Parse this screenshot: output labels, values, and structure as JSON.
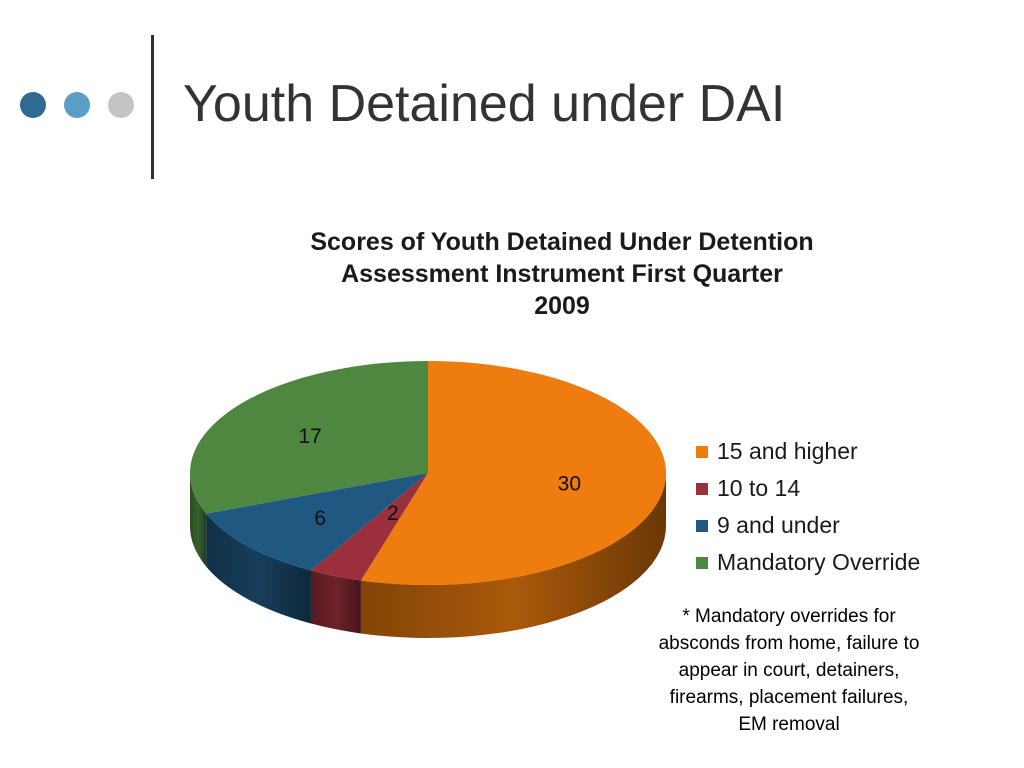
{
  "slide": {
    "title": "Youth Detained under DAI",
    "dot_colors": [
      "#2e6a92",
      "#5a9ec6",
      "#c4c4c4"
    ]
  },
  "chart_data": {
    "type": "pie",
    "title": "Scores of Youth Detained Under Detention Assessment Instrument First Quarter 2009",
    "title_lines": [
      "Scores of Youth Detained Under Detention",
      "Assessment Instrument First Quarter",
      "2009"
    ],
    "three_d": true,
    "legend_position": "right",
    "series": [
      {
        "name": "15 and higher",
        "value": 30,
        "color": "#ee7c0e"
      },
      {
        "name": "10 to 14",
        "value": 2,
        "color": "#9c2f3c"
      },
      {
        "name": "9 and under",
        "value": 6,
        "color": "#1f5880"
      },
      {
        "name": "Mandatory Override",
        "value": 17,
        "color": "#4e8740"
      }
    ]
  },
  "footnote": {
    "lines": [
      "* Mandatory overrides for",
      "absconds from home, failure to",
      "appear in court, detainers,",
      "firearms, placement failures,",
      "EM removal"
    ]
  }
}
